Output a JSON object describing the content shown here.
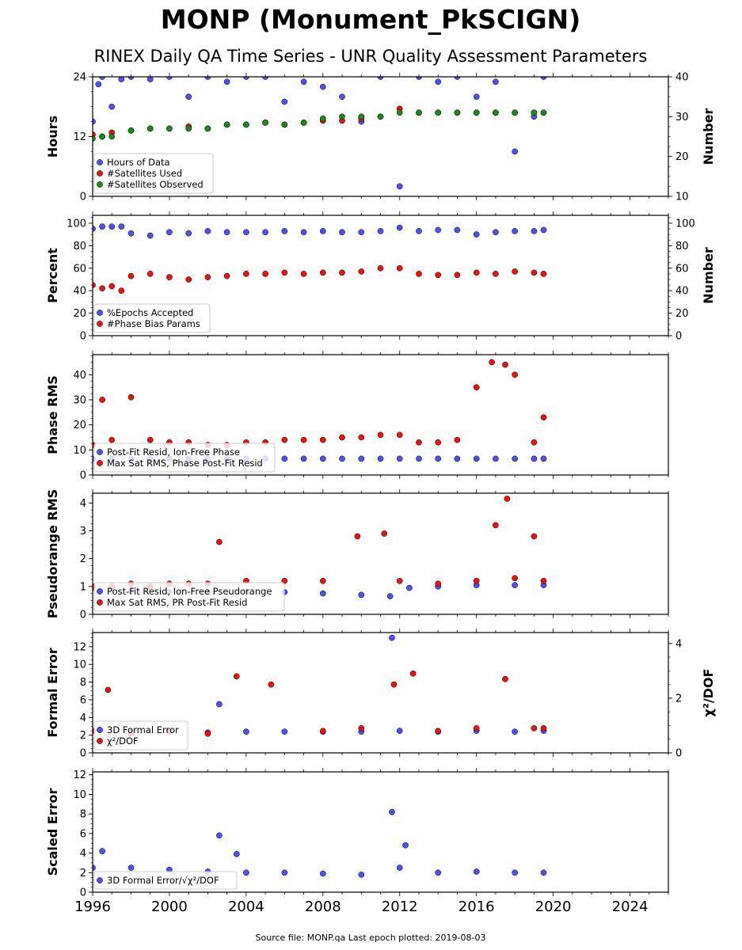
{
  "title": "MONP (Monument_PkSCIGN)",
  "subtitle": "RINEX Daily QA Time Series - UNR Quality Assessment Parameters",
  "footer": "Source file: MONP.qa Last epoch plotted: 2019-08-03",
  "colors": {
    "blue": "#5050ee",
    "red": "#ee1111",
    "green": "#1a8a1a",
    "edge": "#000000"
  },
  "chart_data": [
    {
      "type": "scatter",
      "ylabel": "Hours",
      "y2label": "Number",
      "xlim": [
        1996,
        2026
      ],
      "ylim": [
        0,
        24
      ],
      "yticks": [
        0,
        12,
        24
      ],
      "y2lim": [
        10,
        40
      ],
      "y2ticks": [
        10,
        20,
        30,
        40
      ],
      "legend_location": "lower-left",
      "series": [
        {
          "name": "Hours of Data",
          "color": "#5050ee",
          "axis": "left",
          "x": [
            1996.0,
            1996.3,
            1996.5,
            1997.0,
            1997.5,
            1998.0,
            1999.0,
            2000.0,
            2001.0,
            2002.0,
            2003.0,
            2004.0,
            2005.0,
            2006.0,
            2007.0,
            2008.0,
            2009.0,
            2010.0,
            2011.0,
            2012.0,
            2013.0,
            2014.0,
            2015.0,
            2016.0,
            2017.0,
            2018.0,
            2019.0,
            2019.5
          ],
          "y": [
            15.0,
            22.5,
            24.0,
            18.0,
            23.5,
            24.0,
            23.5,
            24.0,
            20.0,
            24.0,
            23.0,
            24.0,
            24.0,
            19.0,
            23.0,
            22.0,
            20.0,
            15.0,
            24.0,
            2.0,
            24.0,
            23.0,
            24.0,
            20.0,
            23.0,
            9.0,
            16.0,
            24.0
          ]
        },
        {
          "name": "#Satellites Used",
          "color": "#ee1111",
          "axis": "right",
          "x": [
            1996.0,
            1996.5,
            1997.0,
            1998.0,
            1999.0,
            2000.0,
            2001.0,
            2002.0,
            2003.0,
            2004.0,
            2005.0,
            2006.0,
            2007.0,
            2008.0,
            2009.0,
            2010.0,
            2011.0,
            2012.0,
            2013.0,
            2014.0,
            2015.0,
            2016.0,
            2017.0,
            2018.0,
            2019.0,
            2019.5
          ],
          "y": [
            25.5,
            25.0,
            26.0,
            26.5,
            27.0,
            27.0,
            27.5,
            27.0,
            28.0,
            28.0,
            28.5,
            28.0,
            28.5,
            29.0,
            29.0,
            29.5,
            30.0,
            32.0,
            31.0,
            31.0,
            31.0,
            31.0,
            31.0,
            31.0,
            31.0,
            31.0
          ]
        },
        {
          "name": "#Satellites Observed",
          "color": "#1a8a1a",
          "axis": "right",
          "x": [
            1996.0,
            1996.5,
            1997.0,
            1998.0,
            1999.0,
            2000.0,
            2001.0,
            2002.0,
            2003.0,
            2004.0,
            2005.0,
            2006.0,
            2007.0,
            2008.0,
            2009.0,
            2010.0,
            2011.0,
            2012.0,
            2013.0,
            2014.0,
            2015.0,
            2016.0,
            2017.0,
            2018.0,
            2019.0,
            2019.5
          ],
          "y": [
            24.5,
            25.0,
            25.0,
            26.5,
            27.0,
            27.0,
            27.0,
            27.0,
            28.0,
            28.0,
            28.5,
            28.0,
            28.5,
            29.5,
            30.0,
            30.0,
            30.0,
            31.0,
            31.0,
            31.0,
            31.0,
            31.0,
            31.0,
            31.0,
            31.0,
            31.0
          ]
        }
      ]
    },
    {
      "type": "scatter",
      "ylabel": "Percent",
      "y2label": "Number",
      "xlim": [
        1996,
        2026
      ],
      "ylim": [
        0,
        107
      ],
      "yticks": [
        0,
        20,
        40,
        60,
        80,
        100
      ],
      "y2lim": [
        0,
        107
      ],
      "y2ticks": [
        0,
        20,
        40,
        60,
        80,
        100
      ],
      "legend_location": "lower-left",
      "series": [
        {
          "name": "%Epochs Accepted",
          "color": "#5050ee",
          "axis": "left",
          "x": [
            1996.0,
            1996.5,
            1997.0,
            1997.5,
            1998.0,
            1999.0,
            2000.0,
            2001.0,
            2002.0,
            2003.0,
            2004.0,
            2005.0,
            2006.0,
            2007.0,
            2008.0,
            2009.0,
            2010.0,
            2011.0,
            2012.0,
            2013.0,
            2014.0,
            2015.0,
            2016.0,
            2017.0,
            2018.0,
            2019.0,
            2019.5
          ],
          "y": [
            95,
            97,
            97,
            97,
            91,
            89,
            92,
            91,
            93,
            92,
            92,
            92,
            93,
            92,
            93,
            92,
            92,
            93,
            96,
            93,
            94,
            94,
            90,
            92,
            93,
            93,
            94
          ]
        },
        {
          "name": "#Phase Bias Params",
          "color": "#ee1111",
          "axis": "right",
          "x": [
            1996.0,
            1996.5,
            1997.0,
            1997.5,
            1998.0,
            1999.0,
            2000.0,
            2001.0,
            2002.0,
            2003.0,
            2004.0,
            2005.0,
            2006.0,
            2007.0,
            2008.0,
            2009.0,
            2010.0,
            2011.0,
            2012.0,
            2013.0,
            2014.0,
            2015.0,
            2016.0,
            2017.0,
            2018.0,
            2019.0,
            2019.5
          ],
          "y": [
            45,
            42,
            44,
            40,
            53,
            55,
            52,
            50,
            52,
            53,
            55,
            55,
            56,
            55,
            56,
            56,
            57,
            60,
            60,
            55,
            54,
            54,
            56,
            55,
            57,
            56,
            55
          ]
        }
      ]
    },
    {
      "type": "scatter",
      "ylabel": "Phase RMS",
      "xlim": [
        1996,
        2026
      ],
      "ylim": [
        0,
        48
      ],
      "yticks": [
        0,
        10,
        20,
        30,
        40
      ],
      "legend_location": "lower-left",
      "series": [
        {
          "name": "Post-Fit Resid, Ion-Free Phase",
          "color": "#5050ee",
          "x": [
            1996.0,
            1997.0,
            1998.0,
            1999.0,
            2000.0,
            2001.0,
            2002.0,
            2003.0,
            2004.0,
            2005.0,
            2006.0,
            2007.0,
            2008.0,
            2009.0,
            2010.0,
            2011.0,
            2012.0,
            2013.0,
            2014.0,
            2015.0,
            2016.0,
            2017.0,
            2018.0,
            2019.0,
            2019.5
          ],
          "y": [
            6.5,
            6.5,
            6.5,
            6.5,
            6.5,
            6.5,
            6.5,
            6.5,
            6.5,
            6.5,
            6.5,
            6.5,
            6.5,
            6.5,
            6.5,
            6.5,
            6.5,
            6.5,
            6.5,
            6.5,
            6.5,
            6.5,
            6.5,
            6.5,
            6.5
          ]
        },
        {
          "name": "Max Sat RMS, Phase Post-Fit Resid",
          "color": "#ee1111",
          "x": [
            1996.0,
            1996.5,
            1997.0,
            1998.0,
            1999.0,
            2000.0,
            2001.0,
            2002.0,
            2003.0,
            2004.0,
            2005.0,
            2006.0,
            2007.0,
            2008.0,
            2009.0,
            2010.0,
            2011.0,
            2012.0,
            2013.0,
            2014.0,
            2015.0,
            2016.0,
            2016.8,
            2017.5,
            2018.0,
            2019.0,
            2019.5
          ],
          "y": [
            12,
            30,
            14,
            31,
            14,
            13,
            13,
            12,
            12,
            13,
            13,
            14,
            14,
            14,
            15,
            15,
            16,
            16,
            13,
            13,
            14,
            35,
            45,
            44,
            40,
            13,
            23
          ]
        }
      ]
    },
    {
      "type": "scatter",
      "ylabel": "Pseudorange RMS",
      "xlim": [
        1996,
        2026
      ],
      "ylim": [
        0,
        4.35
      ],
      "yticks": [
        0,
        1,
        2,
        3,
        4
      ],
      "legend_location": "lower-left",
      "series": [
        {
          "name": "Post-Fit Resid, Ion-Free Pseudorange",
          "color": "#5050ee",
          "x": [
            1996.0,
            1998.0,
            2000.0,
            2002.0,
            2004.0,
            2006.0,
            2008.0,
            2010.0,
            2011.5,
            2012.5,
            2014.0,
            2016.0,
            2018.0,
            2019.5
          ],
          "y": [
            0.95,
            0.85,
            0.8,
            0.8,
            0.8,
            0.8,
            0.75,
            0.7,
            0.65,
            0.95,
            1.0,
            1.05,
            1.05,
            1.05
          ]
        },
        {
          "name": "Max Sat RMS, PR Post-Fit Resid",
          "color": "#ee1111",
          "x": [
            1996.0,
            1997.0,
            1998.0,
            1999.0,
            2000.0,
            2001.0,
            2002.0,
            2002.6,
            2004.0,
            2006.0,
            2008.0,
            2009.8,
            2011.2,
            2012.0,
            2014.0,
            2016.0,
            2017.0,
            2017.6,
            2018.0,
            2019.0,
            2019.5
          ],
          "y": [
            1.0,
            1.0,
            1.1,
            1.0,
            1.1,
            1.1,
            1.1,
            2.6,
            1.2,
            1.2,
            1.2,
            2.8,
            2.9,
            1.2,
            1.1,
            1.2,
            3.2,
            4.15,
            1.3,
            2.8,
            1.2
          ]
        }
      ]
    },
    {
      "type": "scatter",
      "ylabel": "Formal Error",
      "y2label": "χ²/DOF",
      "xlim": [
        1996,
        2026
      ],
      "ylim": [
        0,
        13.6
      ],
      "yticks": [
        0,
        2,
        4,
        6,
        8,
        10,
        12
      ],
      "y2lim": [
        0,
        4.4
      ],
      "y2ticks": [
        0,
        2,
        4
      ],
      "legend_location": "lower-left",
      "series": [
        {
          "name": "3D Formal Error",
          "color": "#5050ee",
          "axis": "left",
          "x": [
            1996.0,
            1998.0,
            2000.0,
            2002.0,
            2002.6,
            2004.0,
            2006.0,
            2008.0,
            2010.0,
            2011.6,
            2012.0,
            2014.0,
            2016.0,
            2018.0,
            2019.5
          ],
          "y": [
            2.5,
            2.4,
            2.4,
            2.3,
            5.5,
            2.4,
            2.4,
            2.4,
            2.4,
            13.0,
            2.5,
            2.4,
            2.5,
            2.4,
            2.5
          ]
        },
        {
          "name": "χ²/DOF",
          "color": "#ee1111",
          "axis": "right",
          "x": [
            1996.0,
            1996.8,
            1998.0,
            2000.0,
            2002.0,
            2003.5,
            2005.3,
            2008.0,
            2010.0,
            2011.7,
            2012.7,
            2014.0,
            2016.0,
            2017.5,
            2019.0,
            2019.5
          ],
          "y": [
            0.8,
            2.3,
            0.7,
            0.8,
            0.7,
            2.8,
            2.5,
            0.8,
            0.9,
            2.5,
            2.9,
            0.8,
            0.9,
            2.7,
            0.9,
            0.9
          ]
        }
      ]
    },
    {
      "type": "scatter",
      "ylabel": "Scaled Error",
      "xlim": [
        1996,
        2026
      ],
      "ylim": [
        0,
        12.3
      ],
      "yticks": [
        0,
        2,
        4,
        6,
        8,
        10,
        12
      ],
      "xticks": [
        1996,
        2000,
        2004,
        2008,
        2012,
        2016,
        2020,
        2024
      ],
      "legend_location": "lower-left",
      "series": [
        {
          "name": "3D Formal Error/√χ²/DOF",
          "color": "#5050ee",
          "x": [
            1996.0,
            1996.5,
            1998.0,
            2000.0,
            2002.0,
            2002.6,
            2003.5,
            2004.0,
            2006.0,
            2008.0,
            2010.0,
            2011.6,
            2012.0,
            2012.3,
            2014.0,
            2016.0,
            2018.0,
            2019.5
          ],
          "y": [
            2.5,
            4.2,
            2.5,
            2.3,
            2.1,
            5.8,
            3.9,
            2.0,
            2.0,
            1.9,
            1.8,
            8.2,
            2.5,
            4.8,
            2.0,
            2.1,
            2.0,
            2.0
          ]
        }
      ]
    }
  ]
}
